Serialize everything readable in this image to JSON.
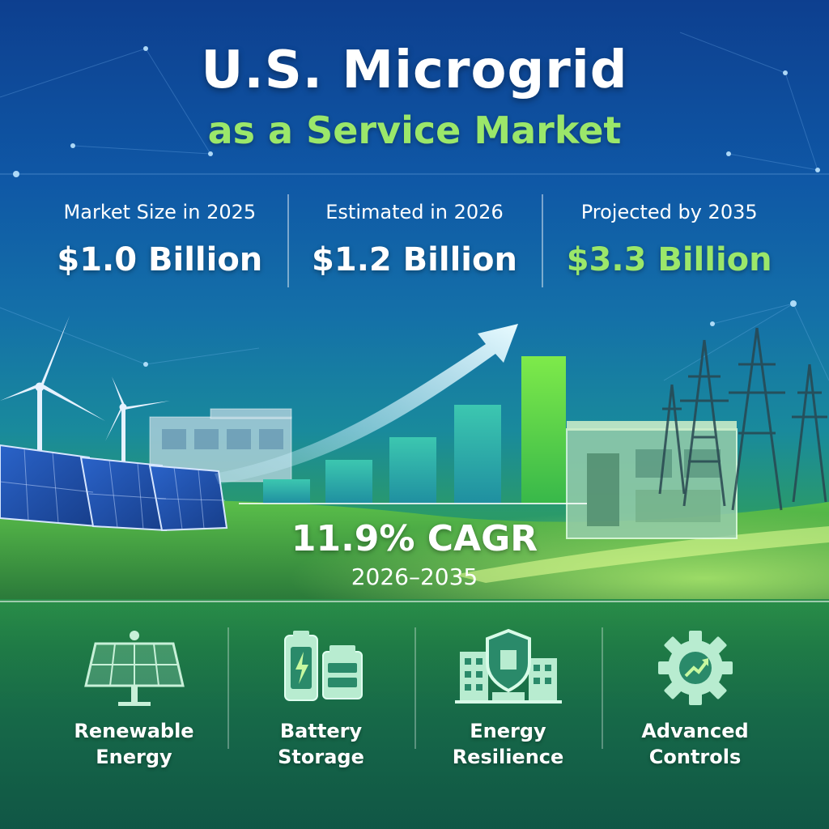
{
  "title": {
    "line1": "U.S. Microgrid",
    "line2": "as a Service Market"
  },
  "stats": [
    {
      "label": "Market Size in 2025",
      "value": "$1.0 Billion"
    },
    {
      "label": "Estimated in 2026",
      "value": "$1.2 Billion"
    },
    {
      "label": "Projected by 2035",
      "value": "$3.3 Billion"
    }
  ],
  "growth": {
    "cagr": "11.9% CAGR",
    "period": "2026–2035"
  },
  "features": [
    {
      "line1": "Renewable",
      "line2": "Energy",
      "icon": "solar-panel-icon"
    },
    {
      "line1": "Battery",
      "line2": "Storage",
      "icon": "battery-icon"
    },
    {
      "line1": "Energy",
      "line2": "Resilience",
      "icon": "shield-building-icon"
    },
    {
      "line1": "Advanced",
      "line2": "Controls",
      "icon": "gear-icon"
    }
  ],
  "colors": {
    "accent_green": "#9be76a",
    "bar_gradient_start": "#2bb0a6",
    "bar_gradient_end": "#6ee24a"
  }
}
